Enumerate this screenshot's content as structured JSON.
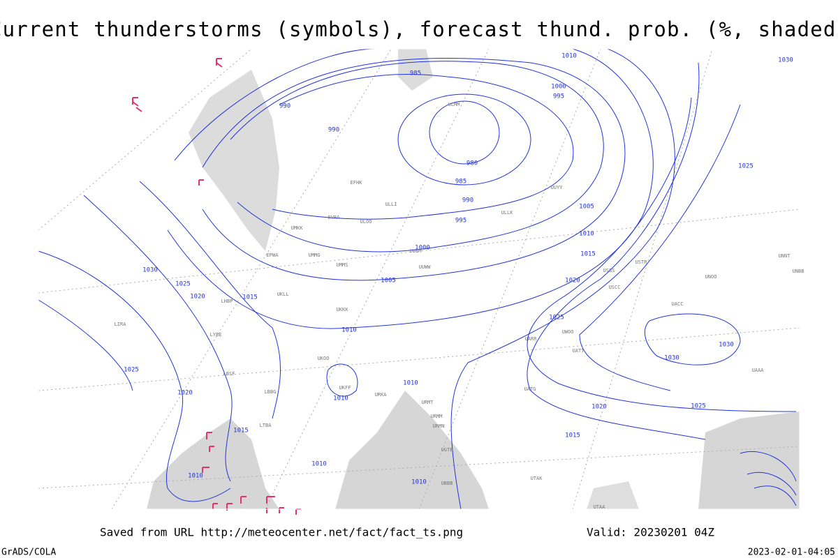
{
  "header": {
    "title": "Current thunderstorms (symbols), forecast thund. prob. (%, shaded)"
  },
  "footer": {
    "source": "Saved from URL http://meteocenter.net/fact/fact_ts.png",
    "valid": "Valid: 20230201 04Z",
    "credit": "GrADS/COLA",
    "timestamp": "2023-02-01-04:05"
  },
  "isobar_labels": [
    985,
    990,
    990,
    980,
    985,
    990,
    995,
    1000,
    1005,
    1010,
    1010,
    1010,
    1010,
    1010,
    1010,
    1015,
    1015,
    1015,
    1020,
    1020,
    1020,
    1020,
    1025,
    1025,
    1025,
    1025,
    1025,
    1030,
    1030,
    1030,
    1030,
    1005,
    1010,
    1015,
    1000,
    995,
    1010
  ],
  "stations": [
    "ULMM",
    "EFHK",
    "ULLI",
    "ULOO",
    "EVRA",
    "UMKK",
    "EPWA",
    "UMMG",
    "UMMS",
    "UUEM",
    "UUWW",
    "UKKK",
    "UKLL",
    "LHBP",
    "LIRA",
    "LYBE",
    "LBSF",
    "LBBG",
    "LTBA",
    "UKOO",
    "UKFF",
    "URKA",
    "URMT",
    "URMM",
    "URMN",
    "UGTB",
    "UBBB",
    "UTAK",
    "UTAA",
    "UATG",
    "UATT",
    "UARR",
    "UWOO",
    "USCC",
    "USSS",
    "USTR",
    "UNOO",
    "UNNT",
    "UNBB",
    "UAAA",
    "UACC",
    "UUYY",
    "ULLK"
  ]
}
